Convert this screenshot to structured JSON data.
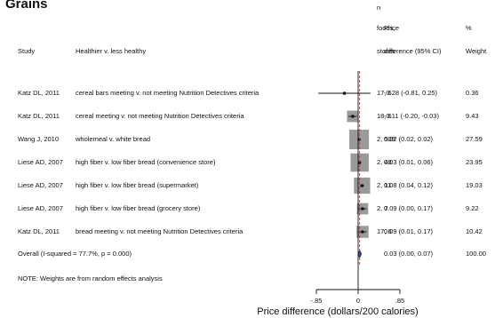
{
  "title": "Grains",
  "headers": {
    "study": "Study",
    "comparison": "Healthier v. less healthy",
    "n_line1": "n",
    "n_line2": "foods,",
    "n_line3": "stores",
    "price_line1": "Price",
    "price_line2": "difference (95% CI)",
    "weight_line1": "%",
    "weight_line2": "Weight"
  },
  "rows": [
    {
      "study": "Katz DL, 2011",
      "comparison": "cereal bars meeting v. not meeting Nutrition Detectives criteria",
      "n": "17, 6",
      "ci_text": "-0.28 (-0.81, 0.25)",
      "weight_text": "0.36",
      "est": -0.28,
      "lo": -0.81,
      "hi": 0.25,
      "weight": 0.36
    },
    {
      "study": "Katz DL, 2011",
      "comparison": "cereal meeting v. not meeting Nutrition Detectives criteria",
      "n": "18, 6",
      "ci_text": "-0.11 (-0.20, -0.03)",
      "weight_text": "9.43",
      "est": -0.11,
      "lo": -0.2,
      "hi": -0.03,
      "weight": 9.43
    },
    {
      "study": "Wang J, 2010",
      "comparison": "wholemeal v. white bread",
      "n": "2, 509",
      "ci_text": "0.02 (0.02, 0.02)",
      "weight_text": "27.59",
      "est": 0.02,
      "lo": 0.02,
      "hi": 0.02,
      "weight": 27.59
    },
    {
      "study": "Liese AD, 2007",
      "comparison": "high fiber v. low fiber bread (convenience store)",
      "n": "2, 48",
      "ci_text": "0.03 (0.01, 0.06)",
      "weight_text": "23.95",
      "est": 0.03,
      "lo": 0.01,
      "hi": 0.06,
      "weight": 23.95
    },
    {
      "study": "Liese AD, 2007",
      "comparison": "high fiber v. low fiber bread (supermarket)",
      "n": "2, 11",
      "ci_text": "0.08 (0.04, 0.12)",
      "weight_text": "19.03",
      "est": 0.08,
      "lo": 0.04,
      "hi": 0.12,
      "weight": 19.03
    },
    {
      "study": "Liese AD, 2007",
      "comparison": "high fiber v. low fiber bread (grocery store)",
      "n": "2, 7",
      "ci_text": "0.09 (0.00, 0.17)",
      "weight_text": "9.22",
      "est": 0.09,
      "lo": 0.0,
      "hi": 0.17,
      "weight": 9.22
    },
    {
      "study": "Katz DL, 2011",
      "comparison": "bread meeting v. not meeting Nutrition Detectives criteria",
      "n": "17, 6",
      "ci_text": "0.09 (0.01, 0.17)",
      "weight_text": "10.42",
      "est": 0.09,
      "lo": 0.01,
      "hi": 0.17,
      "weight": 10.42
    }
  ],
  "overall": {
    "label": "Overall (I-squared = 77.7%, p = 0.000)",
    "ci_text": "0.03 (0.00, 0.07)",
    "weight_text": "100.00",
    "est": 0.03,
    "lo": 0.0,
    "hi": 0.07
  },
  "note": "NOTE: Weights are from random effects analysis",
  "chart_data": {
    "type": "forest",
    "title": "Grains",
    "xlabel": "Price difference (dollars/200 calories)",
    "xticks": [
      -0.85,
      0,
      0.85
    ],
    "xtick_labels": [
      "-.85",
      "0",
      ".85"
    ],
    "xlim": [
      -0.85,
      0.85
    ],
    "categories": [
      "Katz DL, 2011 - cereal bars",
      "Katz DL, 2011 - cereal",
      "Wang J, 2010",
      "Liese AD, 2007 - convenience store",
      "Liese AD, 2007 - supermarket",
      "Liese AD, 2007 - grocery store",
      "Katz DL, 2011 - bread"
    ],
    "estimates": [
      -0.28,
      -0.11,
      0.02,
      0.03,
      0.08,
      0.09,
      0.09
    ],
    "ci_lower": [
      -0.81,
      -0.2,
      0.02,
      0.01,
      0.04,
      0.0,
      0.01
    ],
    "ci_upper": [
      0.25,
      -0.03,
      0.02,
      0.06,
      0.12,
      0.17,
      0.17
    ],
    "weights": [
      0.36,
      9.43,
      27.59,
      23.95,
      19.03,
      9.22,
      10.42
    ],
    "overall": {
      "estimate": 0.03,
      "ci_lower": 0.0,
      "ci_upper": 0.07
    },
    "colors": {
      "box": "#9a9a9a",
      "point": "#111111",
      "overall": "#1f3b8c",
      "null_line": "#111111",
      "estimate_line": "#c0392b"
    }
  }
}
